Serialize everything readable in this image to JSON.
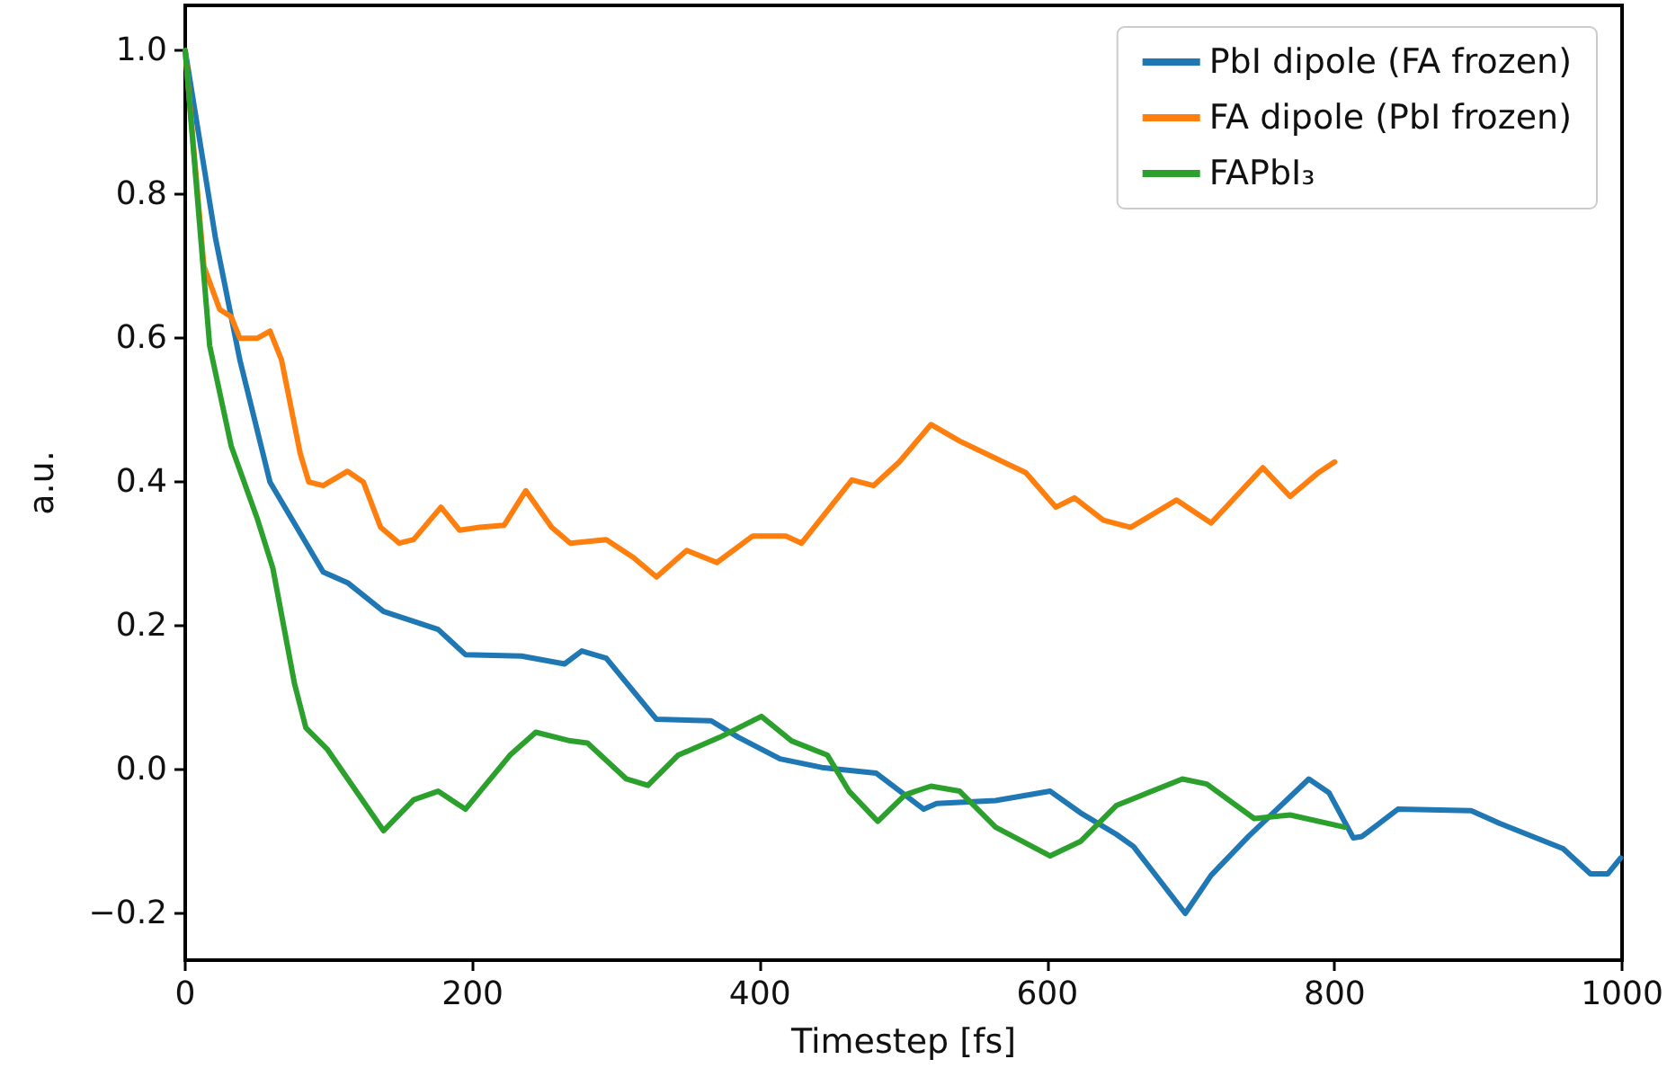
{
  "chart_data": {
    "type": "line",
    "xlabel": "Timestep [fs]",
    "ylabel": "a.u.",
    "xlim": [
      0,
      1000
    ],
    "ylim": [
      -0.265,
      1.063
    ],
    "xticks": [
      0,
      200,
      400,
      600,
      800,
      1000
    ],
    "yticks": [
      {
        "value": -0.2,
        "label": "−0.2"
      },
      {
        "value": 0,
        "label": "0.0"
      },
      {
        "value": 0.2,
        "label": "0.2"
      },
      {
        "value": 0.4,
        "label": "0.4"
      },
      {
        "value": 0.6,
        "label": "0.6"
      },
      {
        "value": 0.8,
        "label": "0.8"
      },
      {
        "value": 1,
        "label": "1.0"
      }
    ],
    "grid": false,
    "legend": "top right",
    "marker": "none",
    "line_style": "solid",
    "series": [
      {
        "name": "PbI dipole (FA frozen)",
        "color": "#1f77b4",
        "x": [
          0,
          21,
          38,
          59,
          96,
          113,
          138,
          176,
          195,
          234,
          264,
          276,
          293,
          328,
          366,
          385,
          414,
          443,
          481,
          514,
          523,
          564,
          602,
          623,
          648,
          660,
          696,
          714,
          740,
          782,
          796,
          813,
          819,
          844,
          895,
          915,
          959,
          978,
          990,
          999
        ],
        "values": [
          1.0,
          0.74,
          0.57,
          0.4,
          0.275,
          0.26,
          0.22,
          0.195,
          0.16,
          0.158,
          0.147,
          0.165,
          0.155,
          0.07,
          0.068,
          0.045,
          0.015,
          0.003,
          -0.005,
          -0.055,
          -0.047,
          -0.043,
          -0.03,
          -0.06,
          -0.09,
          -0.107,
          -0.2,
          -0.147,
          -0.093,
          -0.013,
          -0.032,
          -0.095,
          -0.093,
          -0.055,
          -0.057,
          -0.075,
          -0.11,
          -0.145,
          -0.145,
          -0.123
        ]
      },
      {
        "name": "FA dipole (PbI frozen)",
        "color": "#ff7f0e",
        "x": [
          0,
          13,
          24,
          32,
          38,
          50,
          59,
          67,
          80,
          86,
          96,
          113,
          124,
          136,
          149,
          159,
          178,
          191,
          205,
          222,
          237,
          255,
          268,
          293,
          312,
          328,
          349,
          370,
          395,
          418,
          429,
          464,
          479,
          497,
          519,
          539,
          564,
          585,
          606,
          619,
          639,
          658,
          690,
          714,
          750,
          769,
          788,
          800
        ],
        "values": [
          1.0,
          0.7,
          0.64,
          0.63,
          0.6,
          0.6,
          0.61,
          0.57,
          0.44,
          0.4,
          0.395,
          0.415,
          0.4,
          0.337,
          0.315,
          0.32,
          0.365,
          0.333,
          0.337,
          0.34,
          0.388,
          0.337,
          0.315,
          0.32,
          0.295,
          0.268,
          0.305,
          0.288,
          0.325,
          0.325,
          0.315,
          0.403,
          0.395,
          0.428,
          0.48,
          0.457,
          0.433,
          0.413,
          0.365,
          0.378,
          0.347,
          0.337,
          0.375,
          0.343,
          0.42,
          0.38,
          0.412,
          0.428
        ]
      },
      {
        "name": "FAPbI₃",
        "color": "#2ca02c",
        "x": [
          0,
          17,
          32,
          50,
          61,
          76,
          84,
          99,
          138,
          159,
          176,
          195,
          226,
          244,
          268,
          280,
          307,
          322,
          343,
          372,
          401,
          422,
          447,
          462,
          482,
          501,
          519,
          539,
          564,
          602,
          623,
          648,
          694,
          711,
          744,
          769,
          807
        ],
        "values": [
          1.0,
          0.59,
          0.45,
          0.35,
          0.28,
          0.12,
          0.058,
          0.028,
          -0.085,
          -0.042,
          -0.03,
          -0.055,
          0.02,
          0.052,
          0.04,
          0.037,
          -0.013,
          -0.022,
          0.02,
          0.045,
          0.074,
          0.04,
          0.02,
          -0.03,
          -0.072,
          -0.035,
          -0.023,
          -0.03,
          -0.08,
          -0.12,
          -0.1,
          -0.05,
          -0.013,
          -0.02,
          -0.068,
          -0.063,
          -0.08
        ]
      }
    ]
  }
}
